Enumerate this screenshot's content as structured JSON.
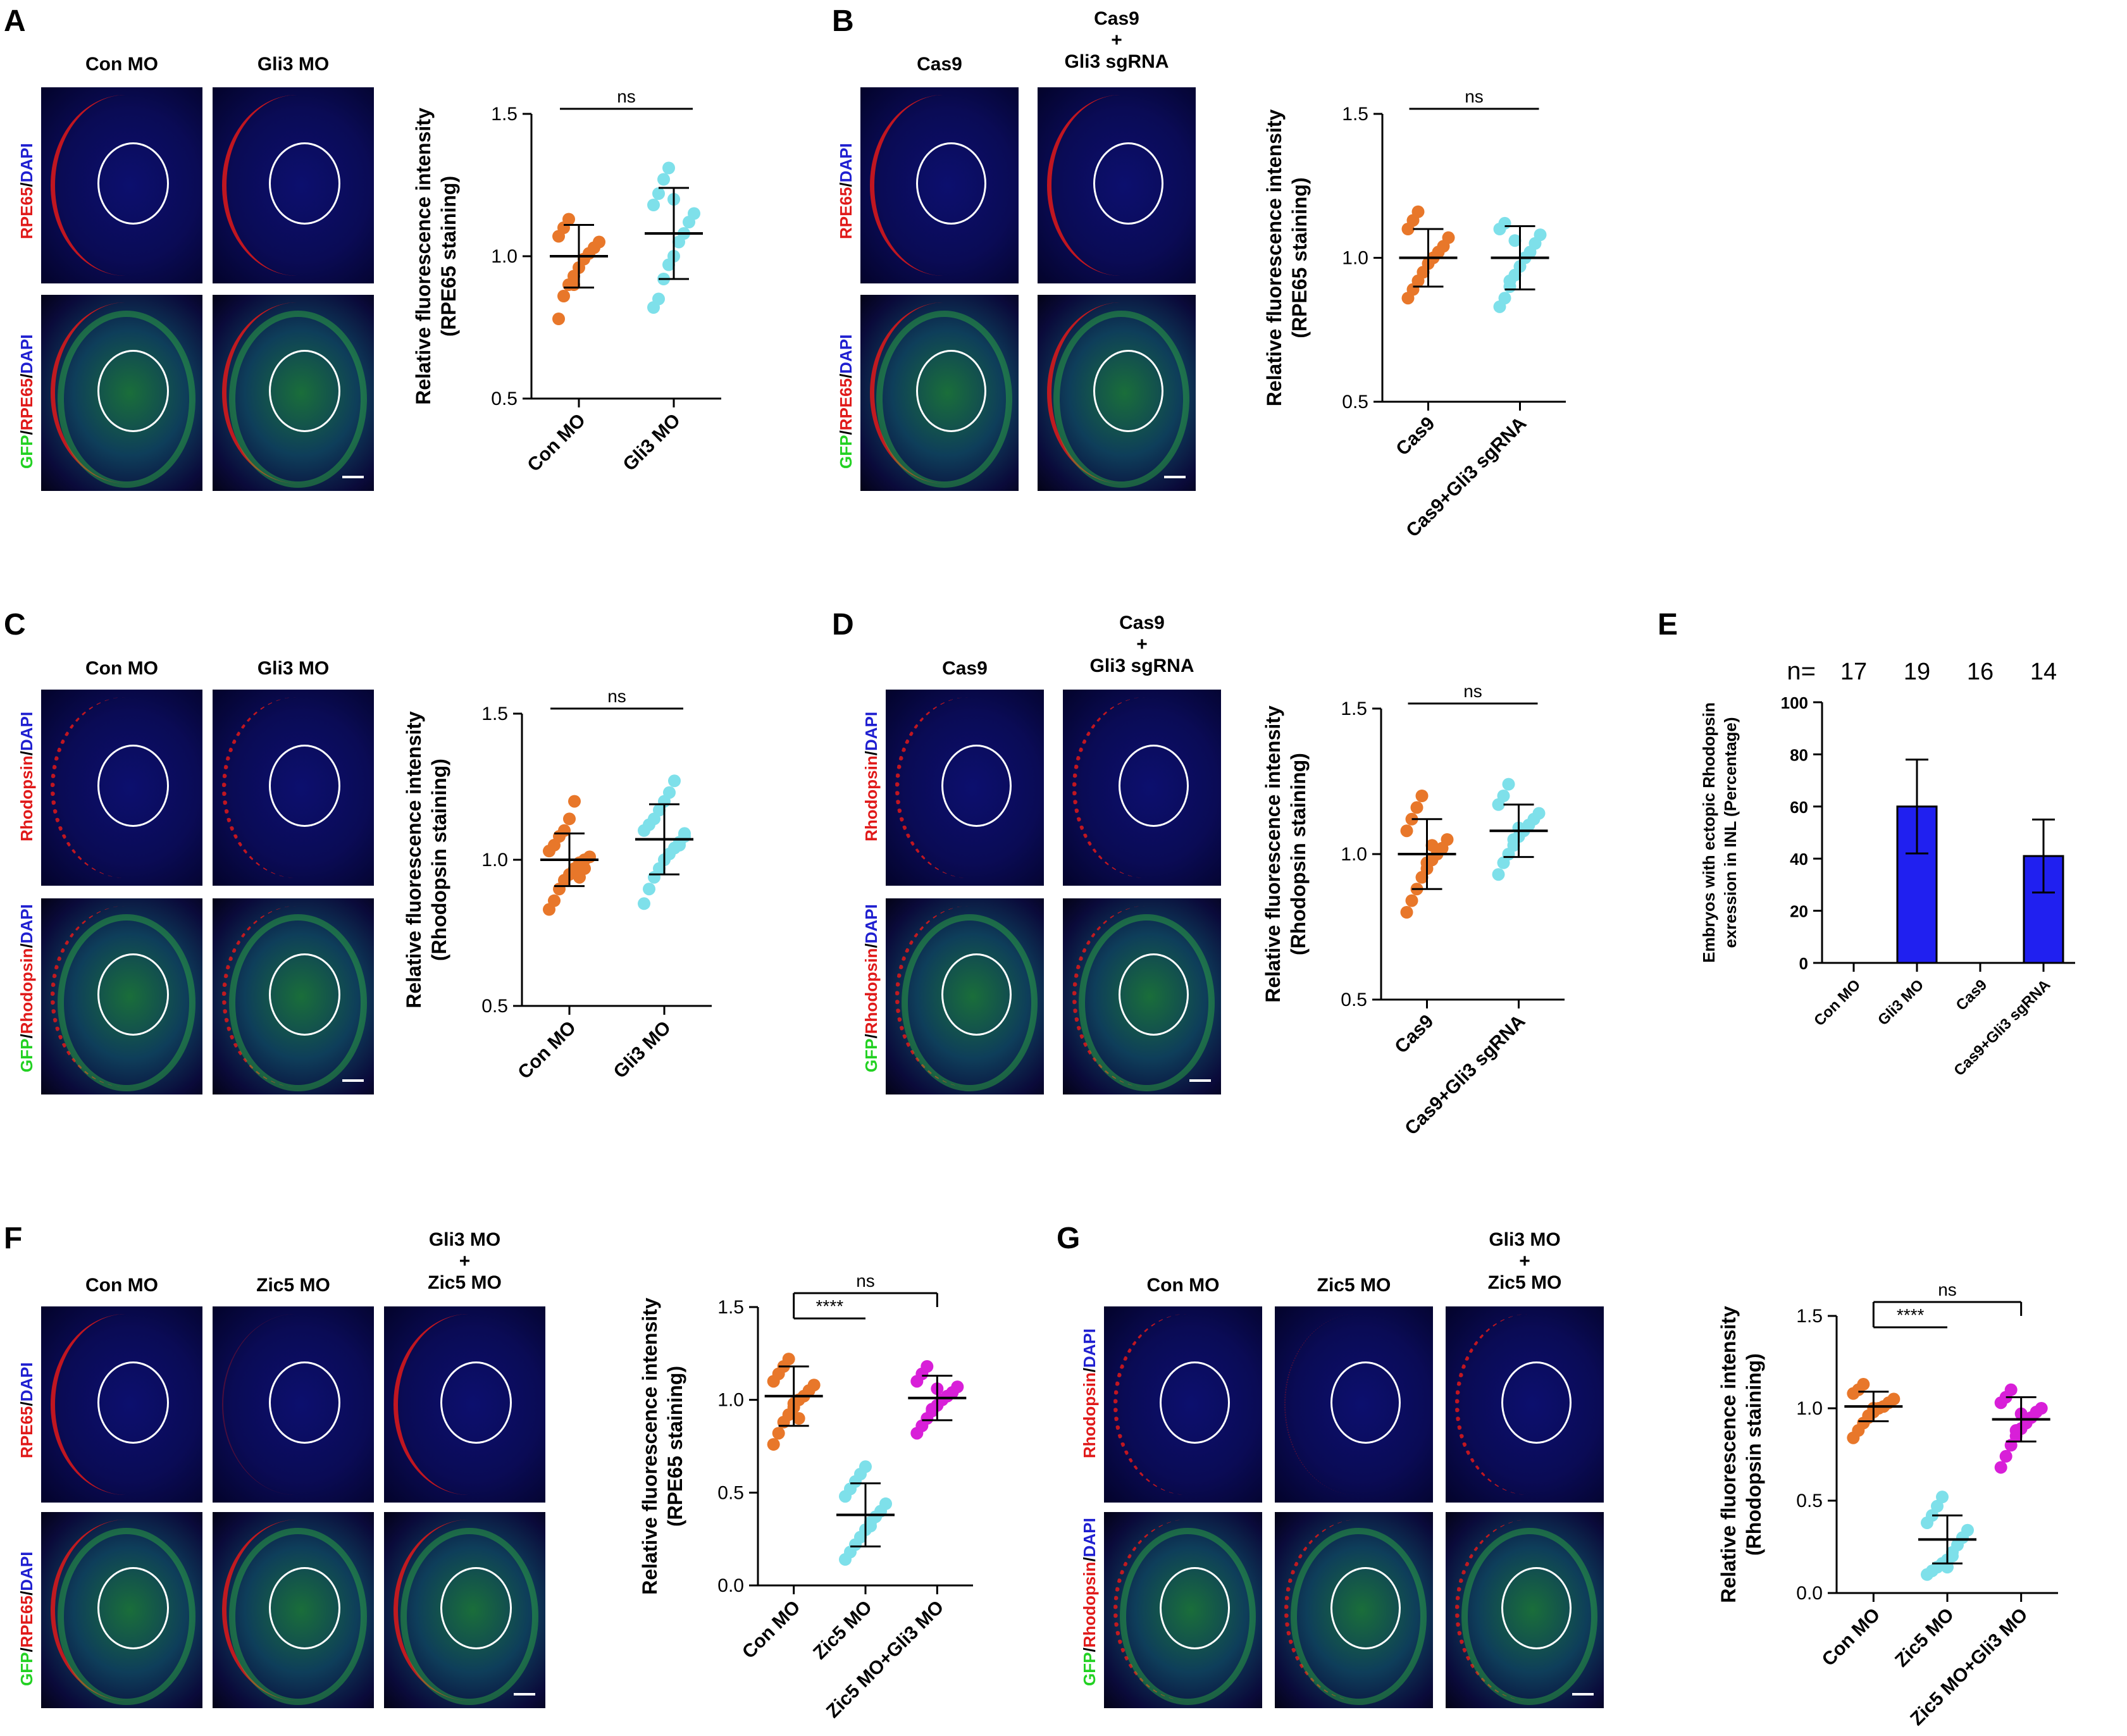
{
  "panels": [
    {
      "id": "A",
      "letter": "A",
      "cols": [
        "Con MO",
        "Gli3 MO"
      ],
      "top_stain": [
        "RPE65",
        "DAPI"
      ],
      "bottom_stain": [
        "GFP",
        "RPE65",
        "DAPI"
      ]
    },
    {
      "id": "B",
      "letter": "B",
      "cols": [
        "Cas9",
        "Cas9\n+\nGli3 sgRNA"
      ],
      "top_stain": [
        "RPE65",
        "DAPI"
      ],
      "bottom_stain": [
        "GFP",
        "RPE65",
        "DAPI"
      ]
    },
    {
      "id": "C",
      "letter": "C",
      "cols": [
        "Con MO",
        "Gli3 MO"
      ],
      "top_stain": [
        "Rhodopsin",
        "DAPI"
      ],
      "bottom_stain": [
        "GFP",
        "Rhodopsin",
        "DAPI"
      ]
    },
    {
      "id": "D",
      "letter": "D",
      "cols": [
        "Cas9",
        "Cas9\n+\nGli3 sgRNA"
      ],
      "top_stain": [
        "Rhodopsin",
        "DAPI"
      ],
      "bottom_stain": [
        "GFP",
        "Rhodopsin",
        "DAPI"
      ]
    },
    {
      "id": "F",
      "letter": "F",
      "cols": [
        "Con MO",
        "Zic5 MO",
        "Gli3 MO\n+\nZic5 MO"
      ],
      "top_stain": [
        "RPE65",
        "DAPI"
      ],
      "bottom_stain": [
        "GFP",
        "RPE65",
        "DAPI"
      ]
    },
    {
      "id": "G",
      "letter": "G",
      "cols": [
        "Con MO",
        "Zic5 MO",
        "Gli3 MO\n+\nZic5 MO"
      ],
      "top_stain": [
        "Rhodopsin",
        "DAPI"
      ],
      "bottom_stain": [
        "GFP",
        "Rhodopsin",
        "DAPI"
      ]
    }
  ],
  "panel_E_letter": "E",
  "colors": {
    "orange": "#e8772a",
    "cyan": "#7ee0ea",
    "magenta": "#d81fd8",
    "bar": "#2020f0",
    "red": "#e01919",
    "green": "#22d122",
    "blue": "#1f1fd0"
  },
  "chart_data": [
    {
      "panel": "A",
      "type": "scatter",
      "ylabel": "Relative fluorescence intensity\n(RPE65 staining)",
      "ylim": [
        0.5,
        1.5
      ],
      "yticks": [
        "0.5",
        "1.0",
        "1.5"
      ],
      "categories": [
        "Con MO",
        "Gli3 MO"
      ],
      "series": [
        {
          "name": "Con MO",
          "mean": 1.0,
          "sd": 0.11,
          "values": [
            0.78,
            0.86,
            0.9,
            0.93,
            0.96,
            0.99,
            1.01,
            1.03,
            1.05,
            1.07,
            1.1,
            1.13,
            0.9
          ]
        },
        {
          "name": "Gli3 MO",
          "mean": 1.08,
          "sd": 0.16,
          "values": [
            0.82,
            0.85,
            0.92,
            0.97,
            1.0,
            1.05,
            1.08,
            1.12,
            1.15,
            1.18,
            1.22,
            1.27,
            1.31,
            1.2
          ]
        }
      ],
      "annotations": [
        {
          "text": "ns",
          "between": [
            0,
            1
          ]
        }
      ]
    },
    {
      "panel": "B",
      "type": "scatter",
      "ylabel": "Relative fluorescence intensity\n(RPE65 staining)",
      "ylim": [
        0.5,
        1.5
      ],
      "yticks": [
        "0.5",
        "1.0",
        "1.5"
      ],
      "categories": [
        "Cas9",
        "Cas9+Gli3 sgRNA"
      ],
      "series": [
        {
          "name": "Cas9",
          "mean": 1.0,
          "sd": 0.1,
          "values": [
            0.86,
            0.89,
            0.92,
            0.95,
            0.98,
            1.0,
            1.02,
            1.04,
            1.07,
            1.1,
            1.13,
            1.16,
            0.95
          ]
        },
        {
          "name": "Cas9+Gli3 sgRNA",
          "mean": 1.0,
          "sd": 0.11,
          "values": [
            0.83,
            0.86,
            0.9,
            0.94,
            0.97,
            1.0,
            1.02,
            1.05,
            1.08,
            1.1,
            1.12,
            0.92,
            1.06
          ]
        }
      ],
      "annotations": [
        {
          "text": "ns",
          "between": [
            0,
            1
          ]
        }
      ]
    },
    {
      "panel": "C",
      "type": "scatter",
      "ylabel": "Relative fluorescence intensity\n(Rhodopsin staining)",
      "ylim": [
        0.5,
        1.5
      ],
      "yticks": [
        "0.5",
        "1.0",
        "1.5"
      ],
      "categories": [
        "Con MO",
        "Gli3 MO"
      ],
      "series": [
        {
          "name": "Con MO",
          "mean": 1.0,
          "sd": 0.09,
          "values": [
            0.83,
            0.86,
            0.9,
            0.93,
            0.95,
            0.97,
            0.99,
            1.0,
            1.01,
            1.03,
            1.05,
            1.08,
            1.1,
            1.14,
            1.2,
            0.94,
            0.97
          ]
        },
        {
          "name": "Gli3 MO",
          "mean": 1.07,
          "sd": 0.12,
          "values": [
            0.85,
            0.9,
            0.94,
            0.97,
            1.0,
            1.02,
            1.04,
            1.06,
            1.08,
            1.1,
            1.12,
            1.14,
            1.17,
            1.2,
            1.23,
            1.27,
            1.05,
            1.09
          ]
        }
      ],
      "annotations": [
        {
          "text": "ns",
          "between": [
            0,
            1
          ]
        }
      ]
    },
    {
      "panel": "D",
      "type": "scatter",
      "ylabel": "Relative fluorescence intensity\n(Rhodopsin staining)",
      "ylim": [
        0.5,
        1.5
      ],
      "yticks": [
        "0.5",
        "1.0",
        "1.5"
      ],
      "categories": [
        "Cas9",
        "Cas9+Gli3 sgRNA"
      ],
      "series": [
        {
          "name": "Cas9",
          "mean": 1.0,
          "sd": 0.12,
          "values": [
            0.8,
            0.84,
            0.88,
            0.92,
            0.95,
            0.98,
            1.0,
            1.02,
            1.05,
            1.08,
            1.12,
            1.16,
            1.2,
            0.97,
            1.03
          ]
        },
        {
          "name": "Cas9+Gli3 sgRNA",
          "mean": 1.08,
          "sd": 0.09,
          "values": [
            0.93,
            0.97,
            1.0,
            1.03,
            1.06,
            1.08,
            1.1,
            1.12,
            1.14,
            1.17,
            1.2,
            1.24,
            1.05,
            1.09
          ]
        }
      ],
      "annotations": [
        {
          "text": "ns",
          "between": [
            0,
            1
          ]
        }
      ]
    },
    {
      "panel": "E",
      "type": "bar",
      "ylabel": "Embryos with ectopic Rhodopsin\nexression in INL (Percentage)",
      "ylim": [
        0,
        100
      ],
      "yticks": [
        "0",
        "20",
        "40",
        "60",
        "80",
        "100"
      ],
      "categories": [
        "Con MO",
        "Gli3 MO",
        "Cas9",
        "Cas9+Gli3 sgRNA"
      ],
      "values": [
        0,
        60,
        0,
        41
      ],
      "errors": [
        0,
        18,
        0,
        14
      ],
      "n_prefix": "n=",
      "n_values": [
        "17",
        "19",
        "16",
        "14"
      ]
    },
    {
      "panel": "F",
      "type": "scatter",
      "ylabel": "Relative fluorescence intensity\n(RPE65 staining)",
      "ylim": [
        0,
        1.5
      ],
      "yticks": [
        "0.0",
        "0.5",
        "1.0",
        "1.5"
      ],
      "categories": [
        "Con MO",
        "Zic5 MO",
        "Zic5 MO+Gli3 MO"
      ],
      "series": [
        {
          "name": "Con MO",
          "mean": 1.02,
          "sd": 0.16,
          "values": [
            0.76,
            0.82,
            0.88,
            0.92,
            0.96,
            1.0,
            1.02,
            1.05,
            1.08,
            1.1,
            1.14,
            1.18,
            1.22,
            0.98,
            0.9
          ]
        },
        {
          "name": "Zic5 MO",
          "mean": 0.38,
          "sd": 0.17,
          "values": [
            0.14,
            0.18,
            0.22,
            0.26,
            0.3,
            0.34,
            0.37,
            0.4,
            0.44,
            0.48,
            0.52,
            0.56,
            0.6,
            0.64,
            0.32
          ]
        },
        {
          "name": "Zic5 MO+Gli3 MO",
          "mean": 1.01,
          "sd": 0.12,
          "values": [
            0.82,
            0.86,
            0.9,
            0.94,
            0.97,
            1.0,
            1.02,
            1.04,
            1.07,
            1.1,
            1.14,
            1.18,
            0.95,
            1.06
          ]
        }
      ],
      "annotations": [
        {
          "text": "****",
          "between": [
            0,
            1
          ]
        },
        {
          "text": "ns",
          "between": [
            0,
            2
          ]
        }
      ]
    },
    {
      "panel": "G",
      "type": "scatter",
      "ylabel": "Relative fluorescence intensity\n(Rhodopsin staining)",
      "ylim": [
        0,
        1.5
      ],
      "yticks": [
        "0.0",
        "0.5",
        "1.0",
        "1.5"
      ],
      "categories": [
        "Con MO",
        "Zic5 MO",
        "Zic5 MO+Gli3 MO"
      ],
      "series": [
        {
          "name": "Con MO",
          "mean": 1.01,
          "sd": 0.08,
          "values": [
            0.84,
            0.88,
            0.92,
            0.95,
            0.98,
            1.0,
            1.01,
            1.03,
            1.05,
            1.08,
            1.1,
            1.13,
            0.96,
            1.0
          ]
        },
        {
          "name": "Zic5 MO",
          "mean": 0.29,
          "sd": 0.13,
          "values": [
            0.1,
            0.12,
            0.14,
            0.16,
            0.18,
            0.22,
            0.26,
            0.3,
            0.34,
            0.38,
            0.42,
            0.47,
            0.52,
            0.14,
            0.2
          ]
        },
        {
          "name": "Zic5 MO+Gli3 MO",
          "mean": 0.94,
          "sd": 0.12,
          "values": [
            0.68,
            0.74,
            0.8,
            0.85,
            0.89,
            0.92,
            0.95,
            0.98,
            1.0,
            1.03,
            1.06,
            1.1,
            0.88,
            0.97
          ]
        }
      ],
      "annotations": [
        {
          "text": "****",
          "between": [
            0,
            1
          ]
        },
        {
          "text": "ns",
          "between": [
            0,
            2
          ]
        }
      ]
    }
  ]
}
